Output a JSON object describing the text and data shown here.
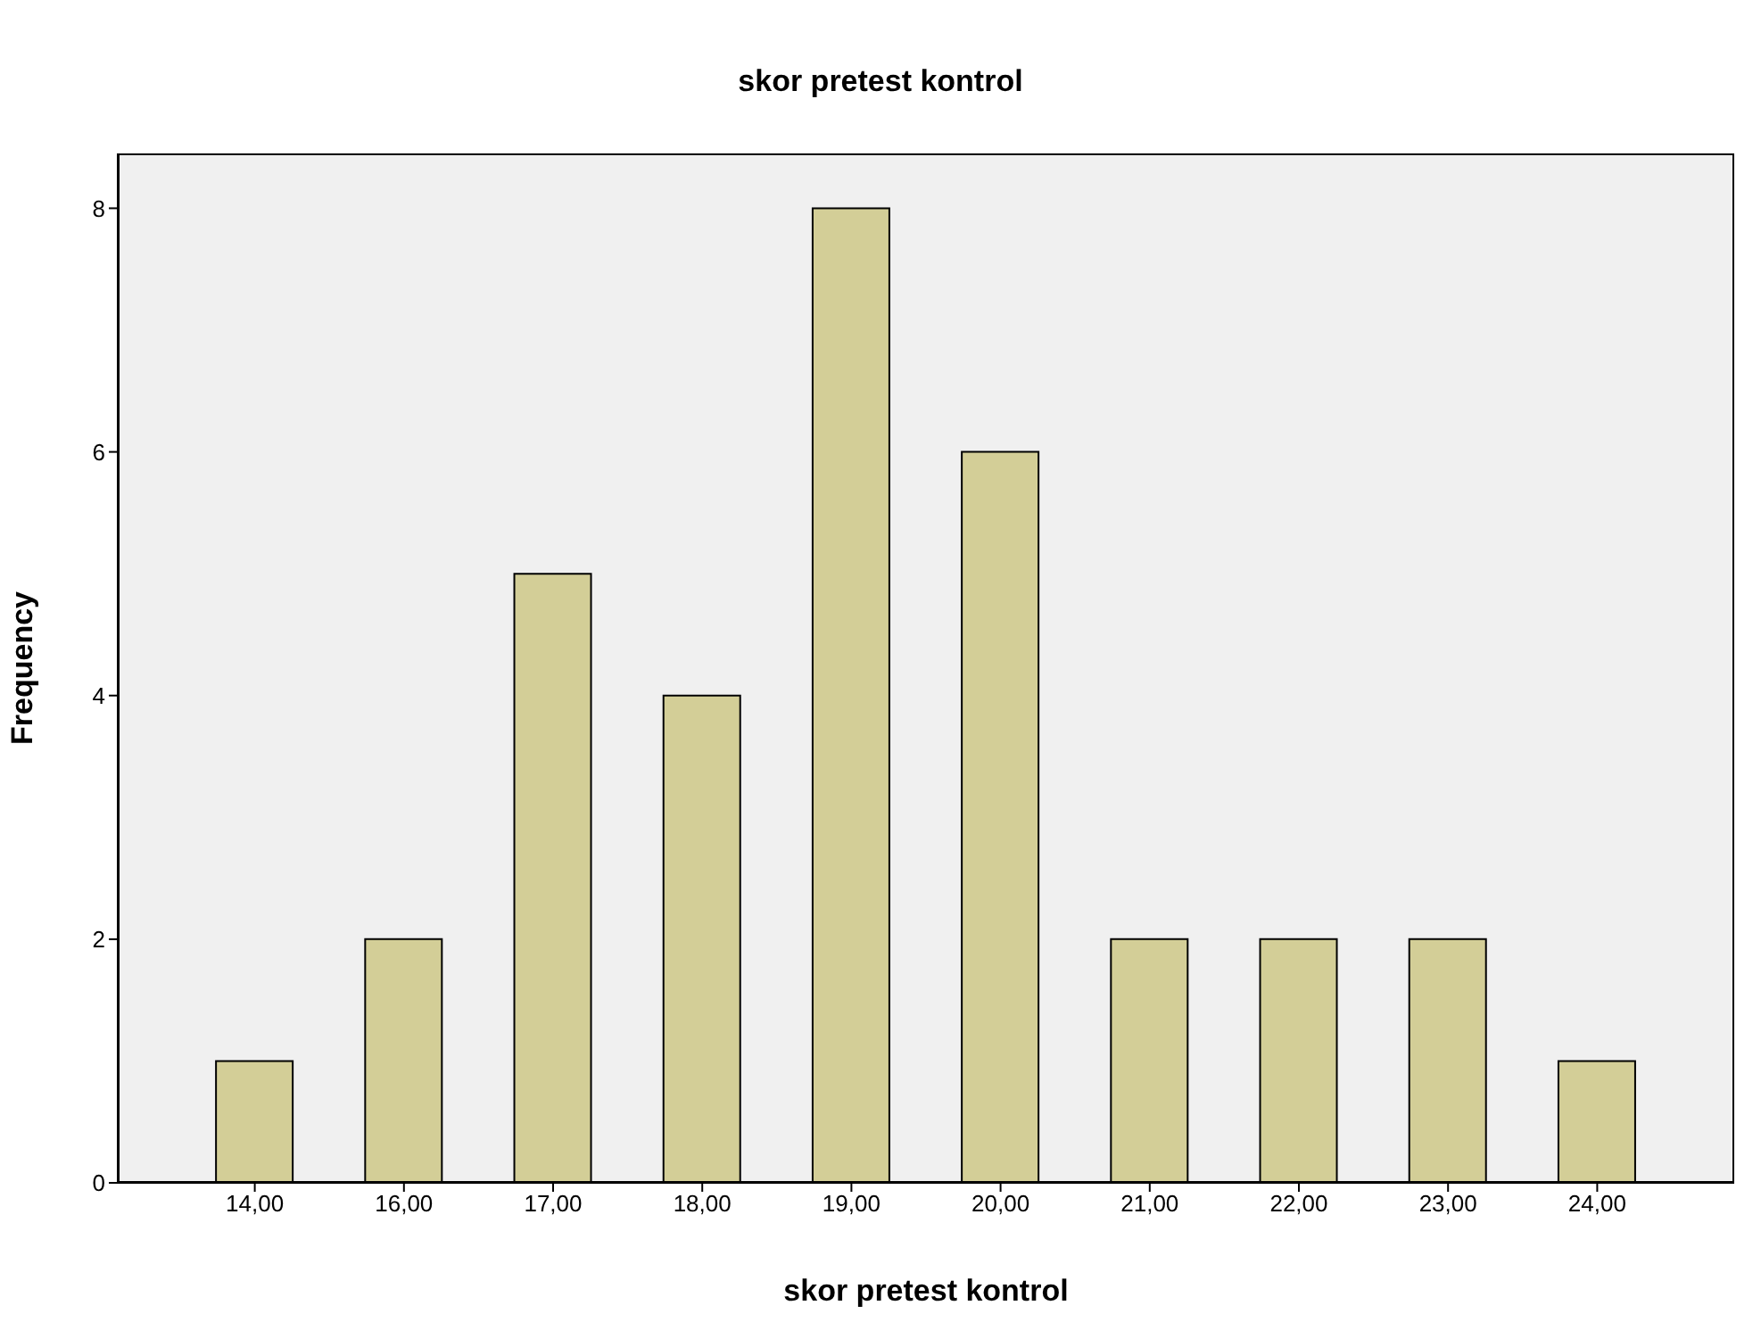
{
  "chart_data": {
    "type": "bar",
    "title": "skor pretest kontrol",
    "xlabel": "skor pretest kontrol",
    "ylabel": "Frequency",
    "categories": [
      "14,00",
      "16,00",
      "17,00",
      "18,00",
      "19,00",
      "20,00",
      "21,00",
      "22,00",
      "23,00",
      "24,00"
    ],
    "values": [
      1,
      2,
      5,
      4,
      8,
      6,
      2,
      2,
      2,
      1
    ],
    "color": "#d3ce97",
    "ylim": [
      0,
      8.45
    ],
    "yticks": [
      0,
      2,
      4,
      6,
      8
    ],
    "grid": false,
    "legend": false
  }
}
